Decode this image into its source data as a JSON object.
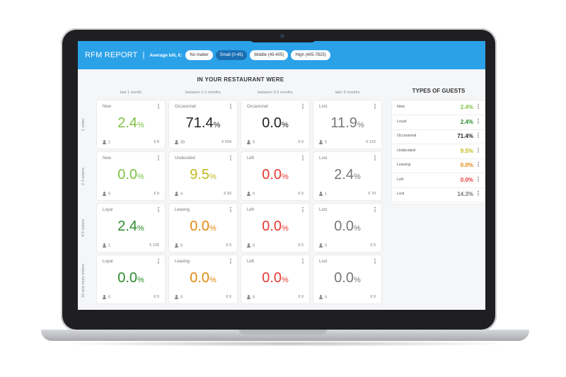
{
  "header": {
    "title": "RFM REPORT",
    "separator": "|",
    "avg_label": "Average bill, €:",
    "filters": [
      {
        "label": "No matter",
        "active": false
      },
      {
        "label": "Small (0-45)",
        "active": true
      },
      {
        "label": "Middle (45-405)",
        "active": false
      },
      {
        "label": "High (405-7825)",
        "active": false
      }
    ]
  },
  "main": {
    "heading": "IN YOUR RESTAURANT WERE",
    "columns": [
      "last 1 month",
      "between 1-3 months",
      "between 3-5 months",
      "later 5 months"
    ],
    "rows": [
      "1 order",
      "2-3 orders",
      "4-9 orders",
      "10 and more orders"
    ],
    "cards": [
      [
        {
          "label": "New",
          "value": "2.4",
          "unit": "%",
          "guests": "1",
          "sum": "€ 8",
          "color": "#7dc242"
        },
        {
          "label": "Occasional",
          "value": "71.4",
          "unit": "%",
          "guests": "30",
          "sum": "€ 534",
          "color": "#222222"
        },
        {
          "label": "Occasional",
          "value": "0.0",
          "unit": "%",
          "guests": "0",
          "sum": "€ 0",
          "color": "#222222"
        },
        {
          "label": "Lost",
          "value": "11.9",
          "unit": "%",
          "guests": "5",
          "sum": "€ 122",
          "color": "#777777"
        }
      ],
      [
        {
          "label": "New",
          "value": "0.0",
          "unit": "%",
          "guests": "0",
          "sum": "€ 0",
          "color": "#7dc242"
        },
        {
          "label": "Undecided",
          "value": "9.5",
          "unit": "%",
          "guests": "4",
          "sum": "€ 93",
          "color": "#c2b91e"
        },
        {
          "label": "Left",
          "value": "0.0",
          "unit": "%",
          "guests": "0",
          "sum": "€ 0",
          "color": "#e53935"
        },
        {
          "label": "Lost",
          "value": "2.4",
          "unit": "%",
          "guests": "1",
          "sum": "€ 70",
          "color": "#777777"
        }
      ],
      [
        {
          "label": "Loyal",
          "value": "2.4",
          "unit": "%",
          "guests": "1",
          "sum": "€ 125",
          "color": "#2e8b2e"
        },
        {
          "label": "Leaving",
          "value": "0.0",
          "unit": "%",
          "guests": "0",
          "sum": "€ 0",
          "color": "#e08a10"
        },
        {
          "label": "Left",
          "value": "0.0",
          "unit": "%",
          "guests": "0",
          "sum": "€ 0",
          "color": "#e53935"
        },
        {
          "label": "Lost",
          "value": "0.0",
          "unit": "%",
          "guests": "0",
          "sum": "€ 0",
          "color": "#777777"
        }
      ],
      [
        {
          "label": "Loyal",
          "value": "0.0",
          "unit": "%",
          "guests": "0",
          "sum": "€ 0",
          "color": "#2e8b2e"
        },
        {
          "label": "Leaving",
          "value": "0.0",
          "unit": "%",
          "guests": "0",
          "sum": "€ 0",
          "color": "#e08a10"
        },
        {
          "label": "Left",
          "value": "0.0",
          "unit": "%",
          "guests": "0",
          "sum": "€ 0",
          "color": "#e53935"
        },
        {
          "label": "Lost",
          "value": "0.0",
          "unit": "%",
          "guests": "0",
          "sum": "€ 0",
          "color": "#777777"
        }
      ]
    ]
  },
  "types": {
    "title": "TYPES OF GUESTS",
    "items": [
      {
        "label": "New",
        "value": "2.4%",
        "color": "#7dc242"
      },
      {
        "label": "Loyal",
        "value": "2.4%",
        "color": "#2e8b2e"
      },
      {
        "label": "Occasional",
        "value": "71.4%",
        "color": "#222222"
      },
      {
        "label": "Undecided",
        "value": "9.5%",
        "color": "#c2b91e"
      },
      {
        "label": "Leaving",
        "value": "0.0%",
        "color": "#e08a10"
      },
      {
        "label": "Left",
        "value": "0.0%",
        "color": "#e53935"
      },
      {
        "label": "Lost",
        "value": "14.3%",
        "color": "#777777"
      }
    ]
  },
  "icons": {
    "menu": "more-vertical-icon",
    "guests": "person-icon"
  }
}
